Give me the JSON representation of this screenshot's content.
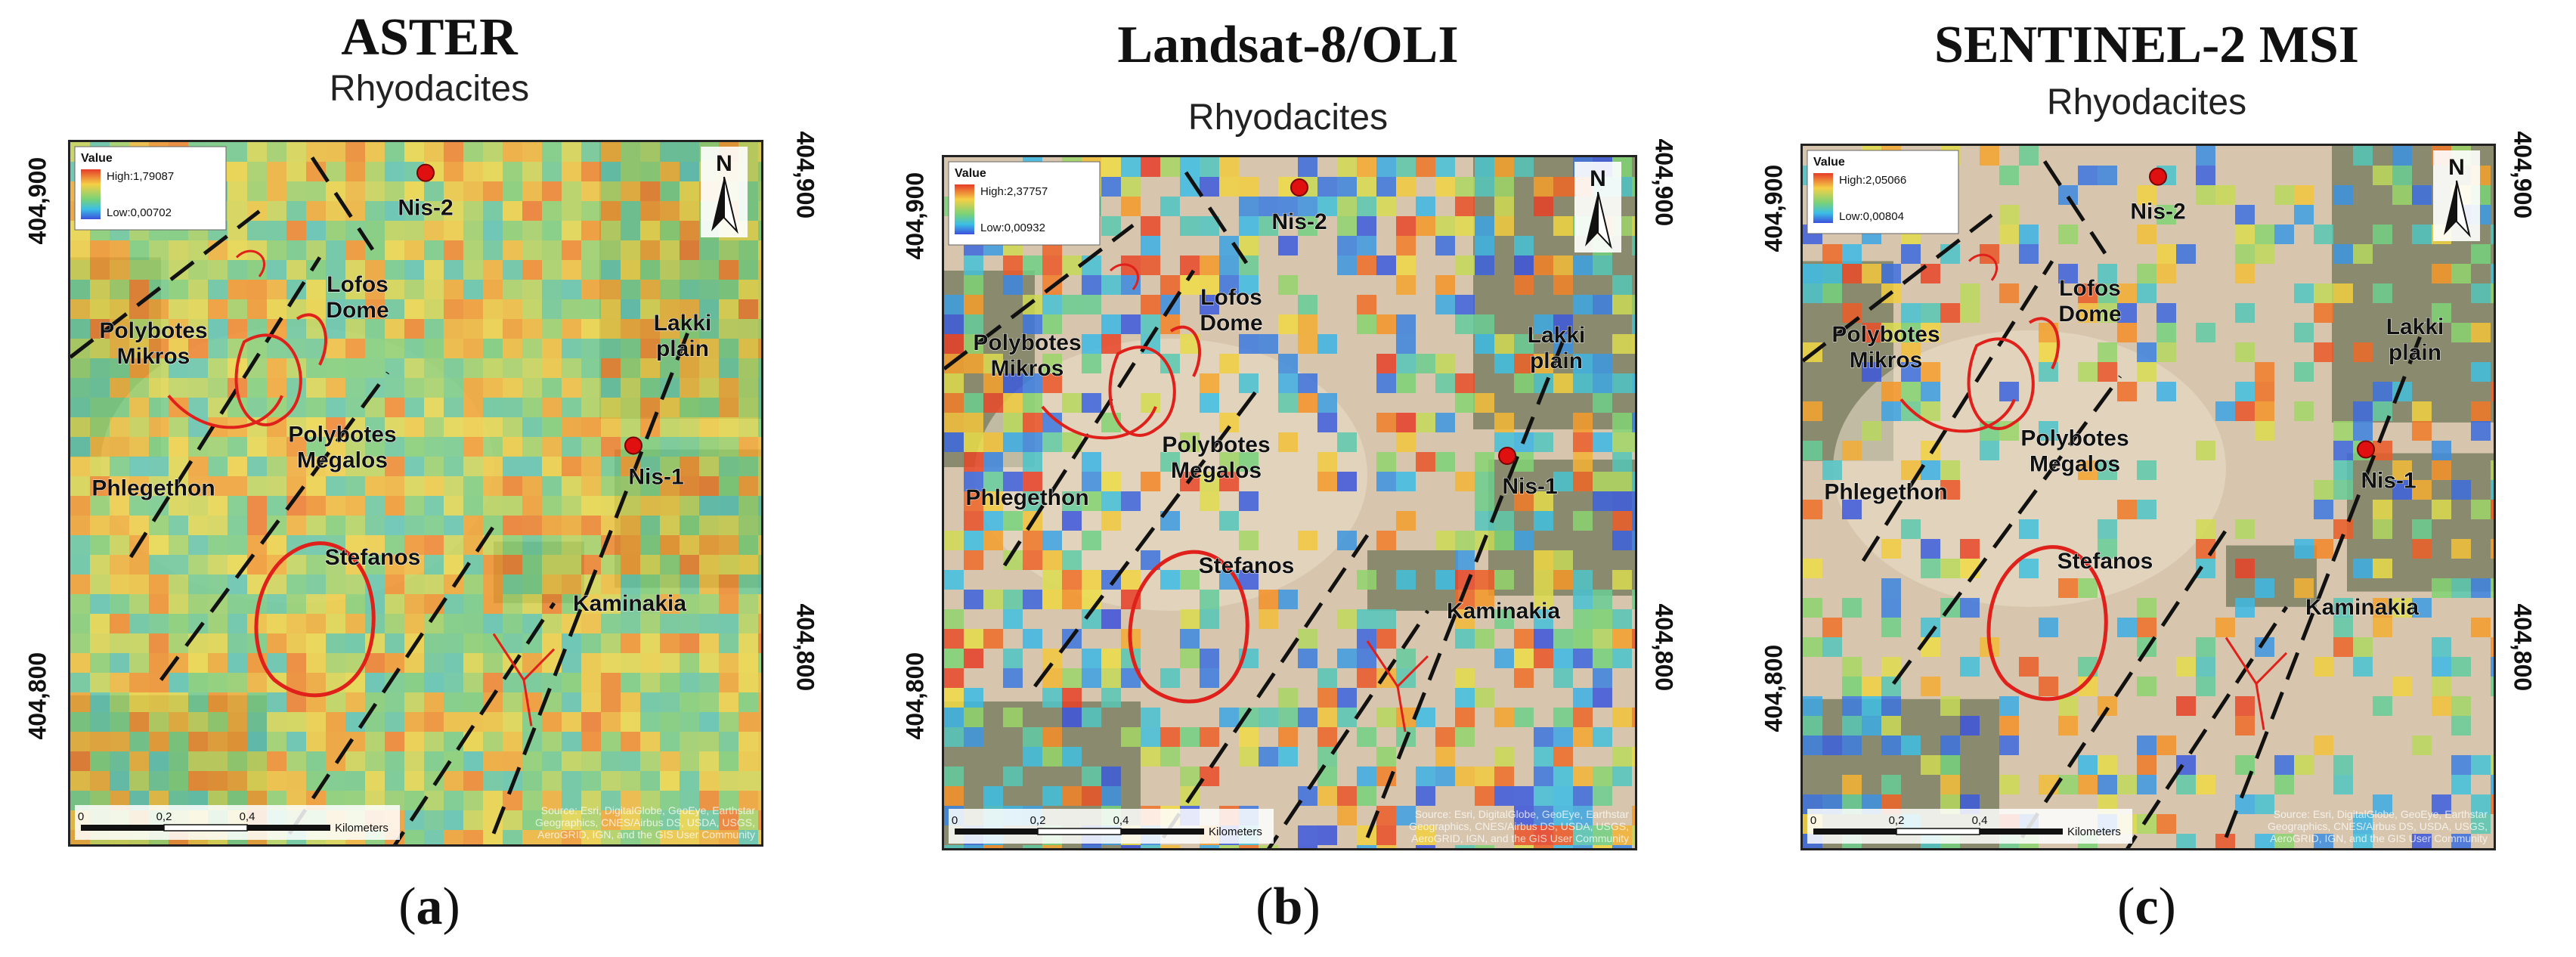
{
  "panels": [
    {
      "sensor_title": "ASTER",
      "map_title": "Rhyodacites",
      "panel_label": "a",
      "legend": {
        "title": "Value",
        "high": "High:1,79087",
        "low": "Low:0,00702"
      },
      "coords": {
        "upper": "404,900",
        "lower": "404,800"
      },
      "overlay_density": 1.0,
      "scale": {
        "ticks": [
          "0",
          "0,2",
          "0,4"
        ],
        "unit": "Kilometers"
      },
      "attribution": "Source: Esri, DigitalGlobe, GeoEye, Earthstar Geographics, CNES/Airbus DS, USDA, USGS, AeroGRID, IGN, and the GIS User Community",
      "places": {
        "nis2": "Nis-2",
        "lofos": "Lofos\nDome",
        "lakki": "Lakki\nplain",
        "polyMikros": "Polybotes\nMikros",
        "polyMegalos": "Polybotes\nMegalos",
        "nis1": "Nis-1",
        "phlegethon": "Phlegethon",
        "stefanos": "Stefanos",
        "kaminakia": "Kaminakia"
      }
    },
    {
      "sensor_title": "Landsat-8/OLI",
      "map_title": "Rhyodacites",
      "panel_label": "b",
      "legend": {
        "title": "Value",
        "high": "High:2,37757",
        "low": "Low:0,00932"
      },
      "coords": {
        "upper": "404,900",
        "lower": "404,800"
      },
      "overlay_density": 0.45,
      "scale": {
        "ticks": [
          "0",
          "0,2",
          "0,4"
        ],
        "unit": "Kilometers"
      },
      "attribution": "Source: Esri, DigitalGlobe, GeoEye, Earthstar Geographics, CNES/Airbus DS, USDA, USGS, AeroGRID, IGN, and the GIS User Community",
      "places": {
        "nis2": "Nis-2",
        "lofos": "Lofos\nDome",
        "lakki": "Lakki\nplain",
        "polyMikros": "Polybotes\nMikros",
        "polyMegalos": "Polybotes\nMegalos",
        "nis1": "Nis-1",
        "phlegethon": "Phlegethon",
        "stefanos": "Stefanos",
        "kaminakia": "Kaminakia"
      }
    },
    {
      "sensor_title": "SENTINEL-2 MSI",
      "map_title": "Rhyodacites",
      "panel_label": "c",
      "legend": {
        "title": "Value",
        "high": "High:2,05066",
        "low": "Low:0,00804"
      },
      "coords": {
        "upper": "404,900",
        "lower": "404,800"
      },
      "overlay_density": 0.28,
      "scale": {
        "ticks": [
          "0",
          "0,2",
          "0,4"
        ],
        "unit": "Kilometers"
      },
      "attribution": "Source: Esri, DigitalGlobe, GeoEye, Earthstar Geographics, CNES/Airbus DS, USDA, USGS, AeroGRID, IGN, and the GIS User Community",
      "places": {
        "nis2": "Nis-2",
        "lofos": "Lofos\nDome",
        "lakki": "Lakki\nplain",
        "polyMikros": "Polybotes\nMikros",
        "polyMegalos": "Polybotes\nMegalos",
        "nis1": "Nis-1",
        "phlegethon": "Phlegethon",
        "stefanos": "Stefanos",
        "kaminakia": "Kaminakia"
      }
    }
  ],
  "north_arrow_label": "N",
  "colors": {
    "map_base": "#d7c6ad",
    "vegetation": "#4b5a3a",
    "crater_outline": "#e0201a",
    "fault_line": "#111111",
    "well_marker": "#e01010"
  }
}
